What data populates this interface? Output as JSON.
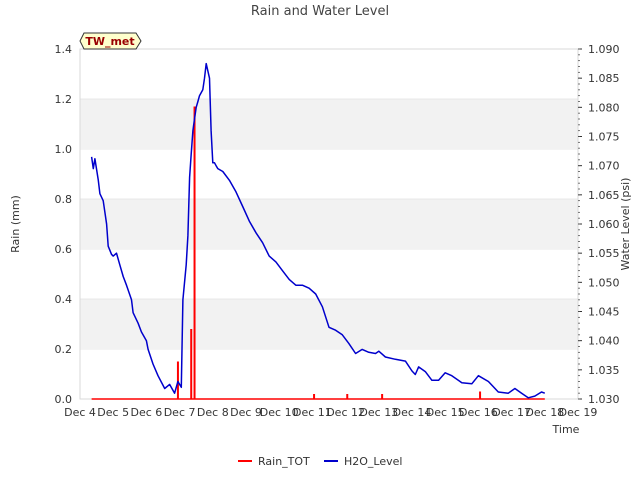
{
  "chart_data": {
    "type": "line",
    "title": "Rain and Water Level",
    "badge": "TW_met",
    "xlabel": "Time",
    "ylabel_left": "Rain (mm)",
    "ylabel_right": "Water Level (psi)",
    "x_unit": "day of December",
    "xlim": [
      4,
      19
    ],
    "x_ticks": [
      {
        "x": 4,
        "label": "Dec 4"
      },
      {
        "x": 5,
        "label": "Dec 5"
      },
      {
        "x": 6,
        "label": "Dec 6"
      },
      {
        "x": 7,
        "label": "Dec 7"
      },
      {
        "x": 8,
        "label": "Dec 8"
      },
      {
        "x": 9,
        "label": "Dec 9"
      },
      {
        "x": 10,
        "label": "Dec 10"
      },
      {
        "x": 11,
        "label": "Dec 11"
      },
      {
        "x": 12,
        "label": "Dec 12"
      },
      {
        "x": 13,
        "label": "Dec 13"
      },
      {
        "x": 14,
        "label": "Dec 14"
      },
      {
        "x": 15,
        "label": "Dec 15"
      },
      {
        "x": 16,
        "label": "Dec 16"
      },
      {
        "x": 17,
        "label": "Dec 17"
      },
      {
        "x": 18,
        "label": "Dec 18"
      },
      {
        "x": 19,
        "label": "Dec 19"
      }
    ],
    "ylim_left": [
      0,
      1.4
    ],
    "y_ticks_left": [
      "0.0",
      "0.2",
      "0.4",
      "0.6",
      "0.8",
      "1.0",
      "1.2",
      "1.4"
    ],
    "ylim_right": [
      1.03,
      1.09
    ],
    "y_ticks_right": [
      "1.030",
      "1.035",
      "1.040",
      "1.045",
      "1.050",
      "1.055",
      "1.060",
      "1.065",
      "1.070",
      "1.075",
      "1.080",
      "1.085",
      "1.090"
    ],
    "grid": "horizontal bands",
    "legend_position": "bottom-center",
    "series": [
      {
        "name": "Rain_TOT",
        "color": "#ff0000",
        "axis": "left",
        "baseline_x_range": [
          4.35,
          18.0
        ],
        "spikes": [
          {
            "x": 6.95,
            "y": 0.15
          },
          {
            "x": 7.35,
            "y": 0.28
          },
          {
            "x": 7.45,
            "y": 1.17
          },
          {
            "x": 11.05,
            "y": 0.02
          },
          {
            "x": 12.05,
            "y": 0.02
          },
          {
            "x": 13.1,
            "y": 0.02
          },
          {
            "x": 16.05,
            "y": 0.03
          }
        ]
      },
      {
        "name": "H2O_Level",
        "color": "#0000cc",
        "axis": "right",
        "x": [
          4.35,
          4.4,
          4.45,
          4.55,
          4.6,
          4.7,
          4.75,
          4.8,
          4.85,
          4.95,
          5.0,
          5.1,
          5.2,
          5.3,
          5.4,
          5.55,
          5.6,
          5.75,
          5.85,
          6.0,
          6.05,
          6.2,
          6.35,
          6.55,
          6.7,
          6.85,
          6.95,
          7.05,
          7.1,
          7.2,
          7.25,
          7.3,
          7.35,
          7.4,
          7.45,
          7.5,
          7.55,
          7.6,
          7.7,
          7.75,
          7.8,
          7.9,
          7.95,
          8.0,
          8.05,
          8.1,
          8.15,
          8.3,
          8.5,
          8.7,
          8.9,
          9.1,
          9.3,
          9.5,
          9.7,
          9.9,
          10.1,
          10.3,
          10.5,
          10.7,
          10.9,
          11.1,
          11.3,
          11.5,
          11.7,
          11.9,
          12.1,
          12.3,
          12.5,
          12.7,
          12.9,
          13.0,
          13.2,
          13.5,
          13.8,
          14.0,
          14.1,
          14.2,
          14.4,
          14.6,
          14.8,
          15.0,
          15.2,
          15.5,
          15.8,
          16.0,
          16.3,
          16.6,
          16.9,
          17.1,
          17.3,
          17.5,
          17.7,
          17.9,
          18.0
        ],
        "values": [
          1.0715,
          1.0695,
          1.0712,
          1.0675,
          1.0652,
          1.064,
          1.062,
          1.06,
          1.0562,
          1.0548,
          1.0545,
          1.055,
          1.053,
          1.051,
          1.0495,
          1.047,
          1.0448,
          1.043,
          1.0415,
          1.04,
          1.0385,
          1.036,
          1.034,
          1.0318,
          1.0325,
          1.031,
          1.033,
          1.032,
          1.047,
          1.053,
          1.058,
          1.068,
          1.072,
          1.076,
          1.078,
          1.08,
          1.081,
          1.082,
          1.083,
          1.085,
          1.0875,
          1.085,
          1.076,
          1.0705,
          1.0705,
          1.07,
          1.0695,
          1.069,
          1.0675,
          1.0655,
          1.063,
          1.0605,
          1.0585,
          1.0568,
          1.0545,
          1.0535,
          1.052,
          1.0505,
          1.0495,
          1.0495,
          1.049,
          1.048,
          1.0458,
          1.0423,
          1.0418,
          1.041,
          1.0395,
          1.0378,
          1.0385,
          1.038,
          1.0378,
          1.0382,
          1.0372,
          1.0368,
          1.0365,
          1.0348,
          1.0342,
          1.0355,
          1.0347,
          1.0332,
          1.0332,
          1.0345,
          1.034,
          1.0328,
          1.0326,
          1.034,
          1.033,
          1.0312,
          1.031,
          1.0318,
          1.031,
          1.0302,
          1.0305,
          1.0312,
          1.031
        ]
      }
    ]
  }
}
